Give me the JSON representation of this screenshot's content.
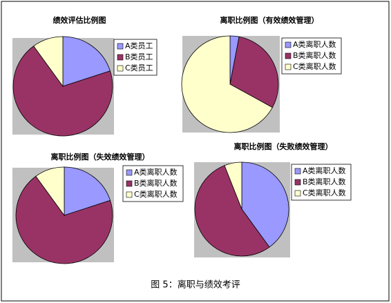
{
  "chart_data": [
    {
      "type": "pie",
      "title": "绩效评估比例图",
      "categories": [
        "A类员工",
        "B类员工",
        "C类员工"
      ],
      "values": [
        20,
        70,
        10
      ],
      "colors": [
        "#9999ff",
        "#993366",
        "#ffffcc"
      ]
    },
    {
      "type": "pie",
      "title": "离职比例图（有效绩效管理）",
      "categories": [
        "A类离职人数",
        "B类离职人数",
        "C类离职人数"
      ],
      "values": [
        3,
        30,
        67
      ],
      "colors": [
        "#9999ff",
        "#993366",
        "#ffffcc"
      ]
    },
    {
      "type": "pie",
      "title": "离职比例图（失效绩效管理）",
      "categories": [
        "A类离职人数",
        "B类离职人数",
        "C类离职人数"
      ],
      "values": [
        20,
        70,
        10
      ],
      "colors": [
        "#9999ff",
        "#993366",
        "#ffffcc"
      ]
    },
    {
      "type": "pie",
      "title": "离职比例图（失败绩效管理）",
      "categories": [
        "A类离职人数",
        "B类离职人数",
        "C类离职人数"
      ],
      "values": [
        40,
        54,
        6
      ],
      "colors": [
        "#9999ff",
        "#993366",
        "#ffffcc"
      ]
    }
  ],
  "caption": "图 5：离职与绩效考评"
}
